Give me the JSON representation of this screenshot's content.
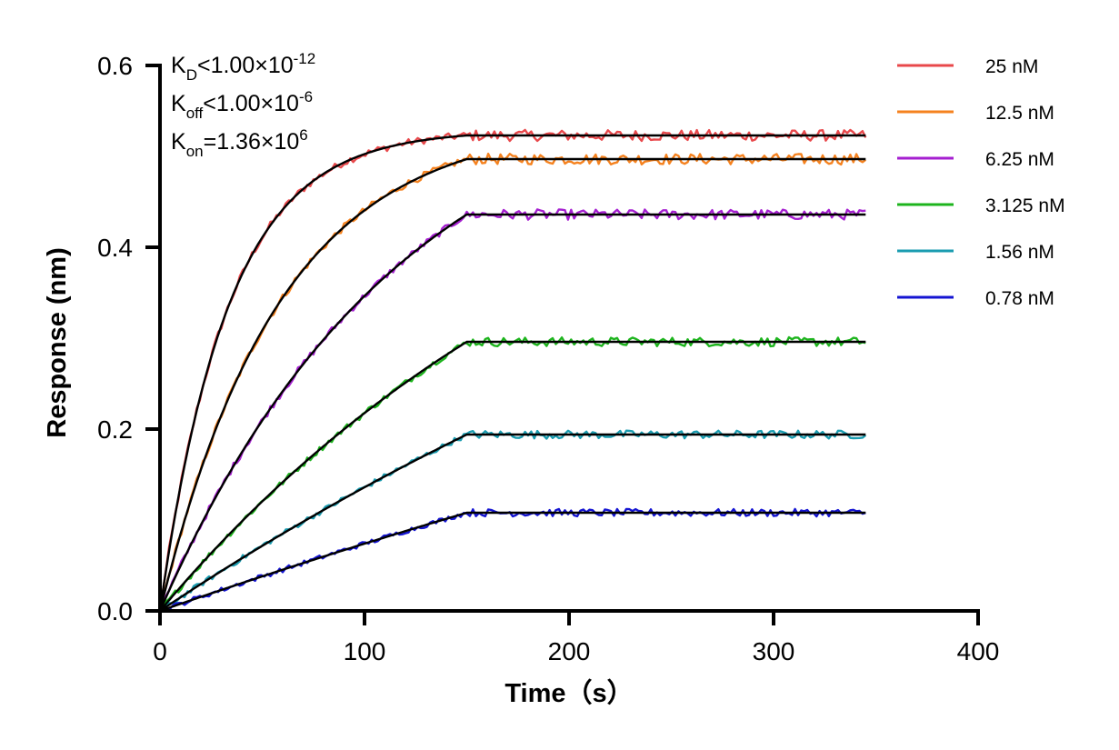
{
  "chart_data": {
    "type": "line",
    "title": "",
    "xlabel": "Time（s）",
    "ylabel": "Response (nm)",
    "xlim": [
      0,
      400
    ],
    "ylim": [
      0,
      0.6
    ],
    "x_ticks": [
      0,
      100,
      200,
      300,
      400
    ],
    "x_tick_labels": [
      "0",
      "100",
      "200",
      "300",
      "400"
    ],
    "y_ticks": [
      0.0,
      0.2,
      0.4,
      0.6
    ],
    "y_tick_labels": [
      "0.0",
      "0.2",
      "0.4",
      "0.6"
    ],
    "grid": false,
    "legend_position": "right",
    "association_end_time": 150,
    "end_time": 345,
    "series": [
      {
        "name": "25 nM",
        "color": "#e8484b",
        "kobs": 0.03,
        "plateau": 0.523
      },
      {
        "name": "12.5 nM",
        "color": "#f5821f",
        "kobs": 0.017,
        "plateau": 0.497
      },
      {
        "name": "6.25 nM",
        "color": "#a51fd0",
        "kobs": 0.0085,
        "plateau": 0.436
      },
      {
        "name": "3.125 nM",
        "color": "#1db41d",
        "kobs": 0.0043,
        "plateau": 0.296
      },
      {
        "name": "1.56 nM",
        "color": "#1a9cb0",
        "kobs": 0.0021,
        "plateau": 0.194
      },
      {
        "name": "0.78 nM",
        "color": "#1414d2",
        "kobs": 0.0011,
        "plateau": 0.108
      }
    ],
    "fit_color": "#000000",
    "annotations": [
      {
        "main": "K",
        "sub": "D",
        "rest": "<1.00×10",
        "sup": "-12"
      },
      {
        "main": "K",
        "sub": "off",
        "rest": "<1.00×10",
        "sup": "-6"
      },
      {
        "main": "K",
        "sub": "on",
        "rest": "=1.36×10",
        "sup": "6"
      }
    ]
  }
}
